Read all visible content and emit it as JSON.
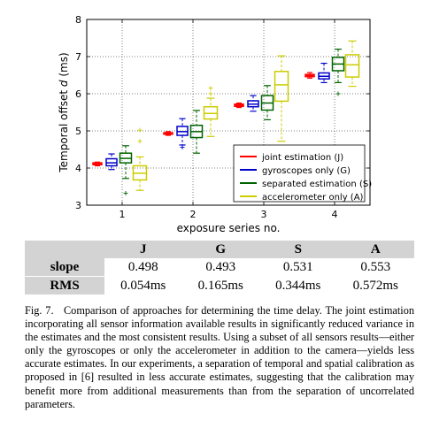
{
  "chart_data": {
    "type": "box",
    "xlabel": "exposure series no.",
    "ylabel_prefix": "Temporal offset ",
    "ylabel_var": "d",
    "ylabel_suffix": " (ms)",
    "x_ticks": [
      "1",
      "2",
      "3",
      "4"
    ],
    "y_ticks": [
      "3",
      "4",
      "5",
      "6",
      "7",
      "8"
    ],
    "ylim": [
      3,
      8
    ],
    "xlim": [
      0.5,
      4.5
    ],
    "grid": true,
    "legend_position": "bottom-right",
    "series": [
      {
        "name": "joint estimation (J)",
        "color": "#ff0000",
        "boxes": [
          {
            "x": 1,
            "whislo": 4.06,
            "q1": 4.09,
            "med": 4.11,
            "q3": 4.14,
            "whishi": 4.16,
            "fliers": []
          },
          {
            "x": 2,
            "whislo": 4.88,
            "q1": 4.91,
            "med": 4.93,
            "q3": 4.95,
            "whishi": 4.98,
            "fliers": []
          },
          {
            "x": 3,
            "whislo": 5.63,
            "q1": 5.66,
            "med": 5.69,
            "q3": 5.72,
            "whishi": 5.75,
            "fliers": []
          },
          {
            "x": 4,
            "whislo": 6.42,
            "q1": 6.46,
            "med": 6.49,
            "q3": 6.52,
            "whishi": 6.57,
            "fliers": []
          }
        ]
      },
      {
        "name": "gyroscopes only (G)",
        "color": "#0000cc",
        "boxes": [
          {
            "x": 1,
            "whislo": 3.96,
            "q1": 4.06,
            "med": 4.14,
            "q3": 4.25,
            "whishi": 4.38,
            "fliers": []
          },
          {
            "x": 2,
            "whislo": 4.62,
            "q1": 4.88,
            "med": 4.98,
            "q3": 5.12,
            "whishi": 5.33,
            "fliers": [
              4.56
            ]
          },
          {
            "x": 3,
            "whislo": 5.53,
            "q1": 5.65,
            "med": 5.72,
            "q3": 5.81,
            "whishi": 5.95,
            "fliers": []
          },
          {
            "x": 4,
            "whislo": 6.3,
            "q1": 6.4,
            "med": 6.47,
            "q3": 6.56,
            "whishi": 6.82,
            "fliers": []
          }
        ]
      },
      {
        "name": "separated estimation (S)",
        "color": "#006400",
        "boxes": [
          {
            "x": 1,
            "whislo": 3.72,
            "q1": 4.14,
            "med": 4.26,
            "q3": 4.4,
            "whishi": 4.6,
            "fliers": [
              3.32
            ]
          },
          {
            "x": 2,
            "whislo": 4.4,
            "q1": 4.82,
            "med": 4.98,
            "q3": 5.15,
            "whishi": 5.55,
            "fliers": []
          },
          {
            "x": 3,
            "whislo": 5.3,
            "q1": 5.56,
            "med": 5.75,
            "q3": 5.95,
            "whishi": 6.22,
            "fliers": []
          },
          {
            "x": 4,
            "whislo": 6.3,
            "q1": 6.62,
            "med": 6.8,
            "q3": 6.98,
            "whishi": 7.2,
            "fliers": [
              6.0
            ]
          }
        ]
      },
      {
        "name": "accelerometer only (A)",
        "color": "#cccc00",
        "boxes": [
          {
            "x": 1,
            "whislo": 3.4,
            "q1": 3.68,
            "med": 3.86,
            "q3": 4.06,
            "whishi": 4.3,
            "fliers": [
              4.72,
              5.02
            ]
          },
          {
            "x": 2,
            "whislo": 4.85,
            "q1": 5.32,
            "med": 5.47,
            "q3": 5.65,
            "whishi": 5.88,
            "fliers": [
              6.0,
              6.15
            ]
          },
          {
            "x": 3,
            "whislo": 4.72,
            "q1": 5.8,
            "med": 6.24,
            "q3": 6.6,
            "whishi": 7.02,
            "fliers": []
          },
          {
            "x": 4,
            "whislo": 6.2,
            "q1": 6.45,
            "med": 6.78,
            "q3": 7.05,
            "whishi": 7.42,
            "fliers": []
          }
        ]
      }
    ]
  },
  "table": {
    "headers": [
      "",
      "J",
      "G",
      "S",
      "A"
    ],
    "rows": [
      {
        "label": "slope",
        "values": [
          "0.498",
          "0.493",
          "0.531",
          "0.553"
        ]
      },
      {
        "label": "RMS",
        "values": [
          "0.054ms",
          "0.165ms",
          "0.344ms",
          "0.572ms"
        ]
      }
    ]
  },
  "caption": {
    "label": "Fig. 7.",
    "text": "Comparison of approaches for determining the time delay. The joint estimation incorporating all sensor information available results in significantly reduced variance in the estimates and the most consistent results. Using a subset of all sensors results—either only the gyroscopes or only the accelerometer in addition to the camera—yields less accurate estimates. In our experiments, a separation of temporal and spatial calibration as proposed in [6] resulted in less accurate estimates, suggesting that the calibration may benefit more from additional measurements than from the separation of uncorrelated parameters."
  }
}
